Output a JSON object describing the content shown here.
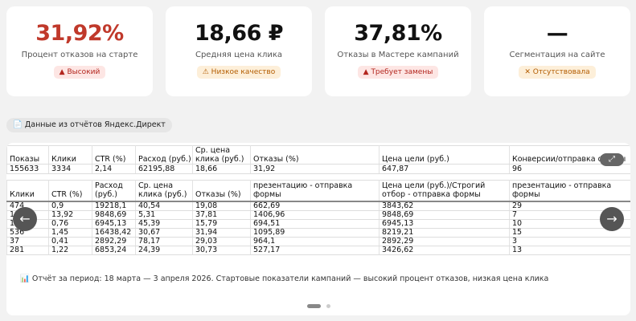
{
  "cards": [
    {
      "value": "31,92%",
      "label": "Процент отказов на старте",
      "badge": "▲ Высокий"
    },
    {
      "value": "18,66 ₽",
      "label": "Средняя цена клика",
      "badge": "⚠ Низкое качество"
    },
    {
      "value": "37,81%",
      "label": "Отказы в Мастере кампаний",
      "badge": "▲ Требует замены"
    },
    {
      "value": "—",
      "label": "Сегментация на сайте",
      "badge": "✕ Отсутствовала"
    }
  ],
  "source_chip": "📄 Данные из отчётов Яндекс.Директ",
  "summary_table": {
    "headers": [
      "Показы",
      "Клики",
      "CTR (%)",
      "Расход (руб.)",
      "Ср. цена клика (руб.)",
      "Отказы (%)",
      "Цена цели (руб.)",
      "Конверсии/отправка формы"
    ],
    "rows": [
      [
        "155633",
        "3334",
        "2,14",
        "62195,88",
        "18,66",
        "31,92",
        "647,87",
        "96"
      ]
    ]
  },
  "detail_table": {
    "headers": [
      "Клики",
      "CTR (%)",
      "Расход (руб.)",
      "Ср. цена клика (руб.)",
      "Отказы (%)",
      "Цена цели (руб.)/Получить презентацию - отправка формы",
      "Цена цели (руб.)/Строгий отбор - отправка формы",
      "Конверсии/Получить презентацию - отправка формы"
    ],
    "rows": [
      [
        "474",
        "0,9",
        "19218,1",
        "40,54",
        "19,08",
        "662,69",
        "3843,62",
        "29"
      ],
      [
        "1853",
        "13,92",
        "9848,69",
        "5,31",
        "37,81",
        "1406,96",
        "9848,69",
        "7"
      ],
      [
        "153",
        "0,76",
        "6945,13",
        "45,39",
        "15,79",
        "694,51",
        "6945,13",
        "10"
      ],
      [
        "536",
        "1,45",
        "16438,42",
        "30,67",
        "31,94",
        "1095,89",
        "8219,21",
        "15"
      ],
      [
        "37",
        "0,41",
        "2892,29",
        "78,17",
        "29,03",
        "964,1",
        "2892,29",
        "3"
      ],
      [
        "281",
        "1,22",
        "6853,24",
        "24,39",
        "30,73",
        "527,17",
        "3426,62",
        "13"
      ]
    ]
  },
  "caption": "📊 Отчёт за период: 18 марта — 3 апреля 2026. Стартовые показатели кампаний — высокий процент отказов, низкая цена клика"
}
